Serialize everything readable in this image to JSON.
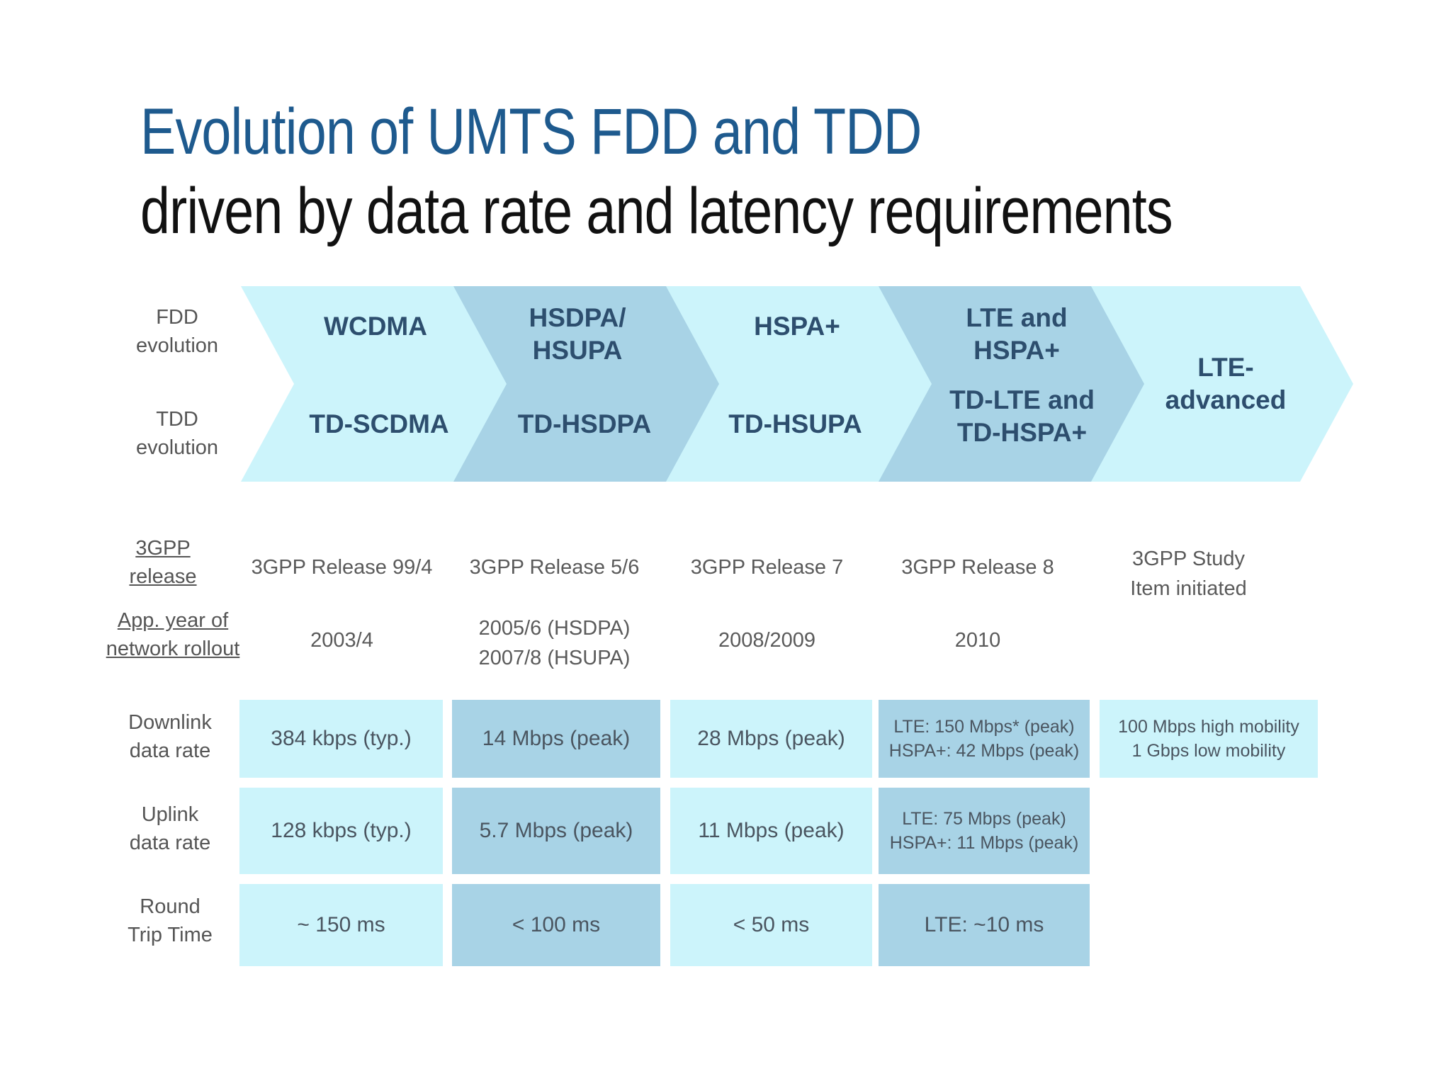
{
  "title_line1": "Evolution of UMTS FDD and TDD",
  "title_line2": "driven by data rate and latency requirements",
  "row_labels": {
    "fdd": [
      "FDD",
      "evolution"
    ],
    "tdd": [
      "TDD",
      "evolution"
    ],
    "release": [
      "3GPP",
      "release"
    ],
    "rollout": [
      "App. year of",
      "network rollout"
    ],
    "downlink": [
      "Downlink",
      "data rate"
    ],
    "uplink": [
      "Uplink",
      "data rate"
    ],
    "rtt": [
      "Round",
      "Trip Time"
    ]
  },
  "phases": [
    {
      "fdd": [
        "WCDMA"
      ],
      "tdd": [
        "TD-SCDMA"
      ]
    },
    {
      "fdd": [
        "HSDPA/",
        "HSUPA"
      ],
      "tdd": [
        "TD-HSDPA"
      ]
    },
    {
      "fdd": [
        "HSPA+"
      ],
      "tdd": [
        "TD-HSUPA"
      ]
    },
    {
      "fdd": [
        "LTE and",
        "HSPA+"
      ],
      "tdd": [
        "TD-LTE and",
        "TD-HSPA+"
      ]
    },
    {
      "combined": [
        "LTE-",
        "advanced"
      ]
    }
  ],
  "releases": [
    [
      "3GPP Release 99/4"
    ],
    [
      "3GPP Release 5/6"
    ],
    [
      "3GPP Release 7"
    ],
    [
      "3GPP Release 8"
    ],
    [
      "3GPP Study",
      "Item initiated"
    ]
  ],
  "rollout": [
    [
      "2003/4"
    ],
    [
      "2005/6 (HSDPA)",
      "2007/8 (HSUPA)"
    ],
    [
      "2008/2009"
    ],
    [
      "2010"
    ]
  ],
  "downlink": [
    [
      "384 kbps (typ.)"
    ],
    [
      "14 Mbps (peak)"
    ],
    [
      "28 Mbps (peak)"
    ],
    [
      "LTE: 150 Mbps* (peak)",
      "HSPA+: 42 Mbps (peak)"
    ],
    [
      "100 Mbps high mobility",
      "1 Gbps low mobility"
    ]
  ],
  "uplink": [
    [
      "128 kbps (typ.)"
    ],
    [
      "5.7 Mbps (peak)"
    ],
    [
      "11 Mbps (peak)"
    ],
    [
      "LTE: 75 Mbps (peak)",
      "HSPA+: 11 Mbps (peak)"
    ]
  ],
  "rtt": [
    [
      "~ 150 ms"
    ],
    [
      "< 100 ms"
    ],
    [
      "< 50 ms"
    ],
    [
      "LTE: ~10 ms"
    ]
  ],
  "colors": {
    "light": "#ccf4fb",
    "dark": "#a8d3e6",
    "title_blue": "#1e5a8e"
  }
}
